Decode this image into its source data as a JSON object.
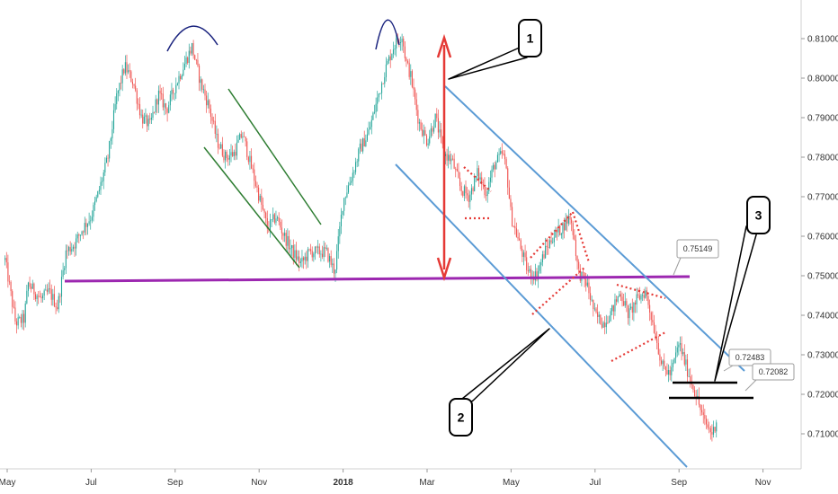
{
  "chart_data": {
    "type": "candlestick",
    "title": "",
    "xlabel": "",
    "ylabel": "",
    "ylim": [
      0.7025,
      0.8185
    ],
    "x_ticks": [
      {
        "label": "May",
        "month": 0,
        "bold": false
      },
      {
        "label": "Jul",
        "month": 2,
        "bold": false
      },
      {
        "label": "Sep",
        "month": 4,
        "bold": false
      },
      {
        "label": "Nov",
        "month": 6,
        "bold": false
      },
      {
        "label": "2018",
        "month": 8,
        "bold": true
      },
      {
        "label": "Mar",
        "month": 10,
        "bold": false
      },
      {
        "label": "May",
        "month": 12,
        "bold": false
      },
      {
        "label": "Jul",
        "month": 14,
        "bold": false
      },
      {
        "label": "Sep",
        "month": 16,
        "bold": false
      },
      {
        "label": "Nov",
        "month": 18,
        "bold": false
      }
    ],
    "y_ticks": [
      "0.71000",
      "0.72000",
      "0.73000",
      "0.74000",
      "0.75000",
      "0.76000",
      "0.77000",
      "0.78000",
      "0.79000",
      "0.80000",
      "0.81000"
    ],
    "price_path": [
      [
        -0.05,
        0.754
      ],
      [
        0.2,
        0.738
      ],
      [
        0.4,
        0.739
      ],
      [
        0.5,
        0.748
      ],
      [
        0.8,
        0.744
      ],
      [
        1.0,
        0.746
      ],
      [
        1.2,
        0.742
      ],
      [
        1.4,
        0.756
      ],
      [
        1.6,
        0.758
      ],
      [
        1.8,
        0.762
      ],
      [
        2.0,
        0.765
      ],
      [
        2.2,
        0.772
      ],
      [
        2.4,
        0.78
      ],
      [
        2.6,
        0.795
      ],
      [
        2.8,
        0.803
      ],
      [
        3.0,
        0.799
      ],
      [
        3.2,
        0.79
      ],
      [
        3.4,
        0.788
      ],
      [
        3.6,
        0.796
      ],
      [
        3.8,
        0.792
      ],
      [
        4.0,
        0.798
      ],
      [
        4.2,
        0.803
      ],
      [
        4.4,
        0.808
      ],
      [
        4.6,
        0.799
      ],
      [
        4.8,
        0.793
      ],
      [
        5.0,
        0.784
      ],
      [
        5.2,
        0.78
      ],
      [
        5.4,
        0.781
      ],
      [
        5.6,
        0.786
      ],
      [
        5.8,
        0.778
      ],
      [
        6.0,
        0.77
      ],
      [
        6.2,
        0.762
      ],
      [
        6.4,
        0.765
      ],
      [
        6.6,
        0.76
      ],
      [
        6.8,
        0.756
      ],
      [
        7.0,
        0.753
      ],
      [
        7.2,
        0.756
      ],
      [
        7.4,
        0.756
      ],
      [
        7.6,
        0.756
      ],
      [
        7.8,
        0.751
      ],
      [
        8.0,
        0.769
      ],
      [
        8.2,
        0.775
      ],
      [
        8.4,
        0.782
      ],
      [
        8.6,
        0.786
      ],
      [
        8.8,
        0.794
      ],
      [
        9.0,
        0.802
      ],
      [
        9.2,
        0.808
      ],
      [
        9.4,
        0.811
      ],
      [
        9.5,
        0.804
      ],
      [
        9.6,
        0.801
      ],
      [
        9.8,
        0.789
      ],
      [
        10.0,
        0.784
      ],
      [
        10.2,
        0.79
      ],
      [
        10.4,
        0.781
      ],
      [
        10.6,
        0.779
      ],
      [
        10.8,
        0.772
      ],
      [
        11.0,
        0.77
      ],
      [
        11.2,
        0.776
      ],
      [
        11.4,
        0.771
      ],
      [
        11.6,
        0.778
      ],
      [
        11.8,
        0.781
      ],
      [
        11.9,
        0.776
      ],
      [
        12.0,
        0.765
      ],
      [
        12.2,
        0.758
      ],
      [
        12.4,
        0.751
      ],
      [
        12.6,
        0.75
      ],
      [
        12.8,
        0.756
      ],
      [
        13.0,
        0.76
      ],
      [
        13.2,
        0.762
      ],
      [
        13.4,
        0.765
      ],
      [
        13.5,
        0.76
      ],
      [
        13.6,
        0.751
      ],
      [
        13.8,
        0.748
      ],
      [
        14.0,
        0.74
      ],
      [
        14.2,
        0.738
      ],
      [
        14.4,
        0.741
      ],
      [
        14.6,
        0.746
      ],
      [
        14.8,
        0.74
      ],
      [
        15.0,
        0.744
      ],
      [
        15.2,
        0.746
      ],
      [
        15.4,
        0.737
      ],
      [
        15.6,
        0.727
      ],
      [
        15.8,
        0.725
      ],
      [
        16.0,
        0.733
      ],
      [
        16.2,
        0.726
      ],
      [
        16.4,
        0.72
      ],
      [
        16.6,
        0.713
      ],
      [
        16.8,
        0.71
      ],
      [
        16.9,
        0.714
      ]
    ],
    "horizontal_level": 0.75149,
    "callouts": [
      "0.75149",
      "0.72483",
      "0.72082"
    ],
    "markers": [
      "1",
      "2",
      "3"
    ],
    "support_levels": [
      0.72483,
      0.72082
    ],
    "colors": {
      "up_candle": "#26a69a",
      "down_candle": "#ef5350",
      "channel_blue": "#5b9bd5",
      "channel_green": "#2e7d32",
      "level_purple": "#9c27b0",
      "arrow_red": "#e53935",
      "arc_navy": "#1a237e",
      "dotted_red": "#e53935"
    }
  }
}
